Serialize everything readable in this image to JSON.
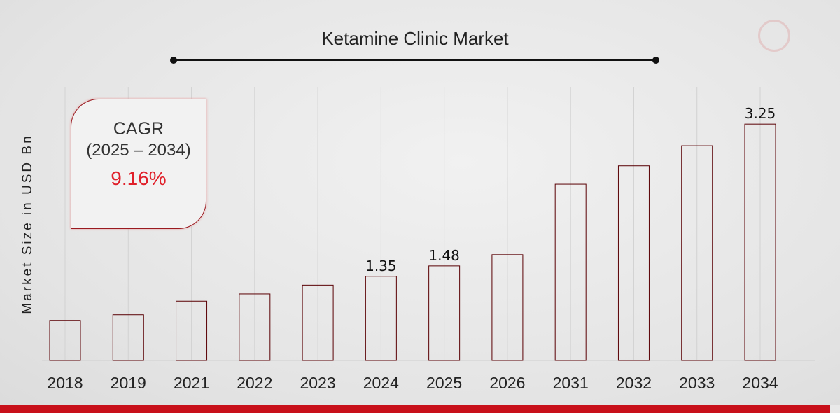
{
  "chart_data": {
    "type": "bar",
    "title": "Ketamine Clinic Market",
    "xlabel": "",
    "ylabel": "Market Size in USD Bn",
    "categories": [
      "2018",
      "2019",
      "2021",
      "2022",
      "2023",
      "2024",
      "2025",
      "2026",
      "2031",
      "2032",
      "2033",
      "2034"
    ],
    "values": [
      0.8,
      0.87,
      1.04,
      1.13,
      1.24,
      1.35,
      1.48,
      1.62,
      2.5,
      2.73,
      2.98,
      3.25
    ],
    "data_labels": {
      "2024": "1.35",
      "2025": "1.48",
      "2034": "3.25"
    },
    "ylim": [
      0.3,
      3.4
    ],
    "grid": "vertical",
    "bar_color": "#c8101a"
  },
  "cagr": {
    "label": "CAGR",
    "period": "(2025 – 2034)",
    "value": "9.16%",
    "value_color": "#e0202a"
  },
  "logo_icon": "chart-magnifier-logo"
}
